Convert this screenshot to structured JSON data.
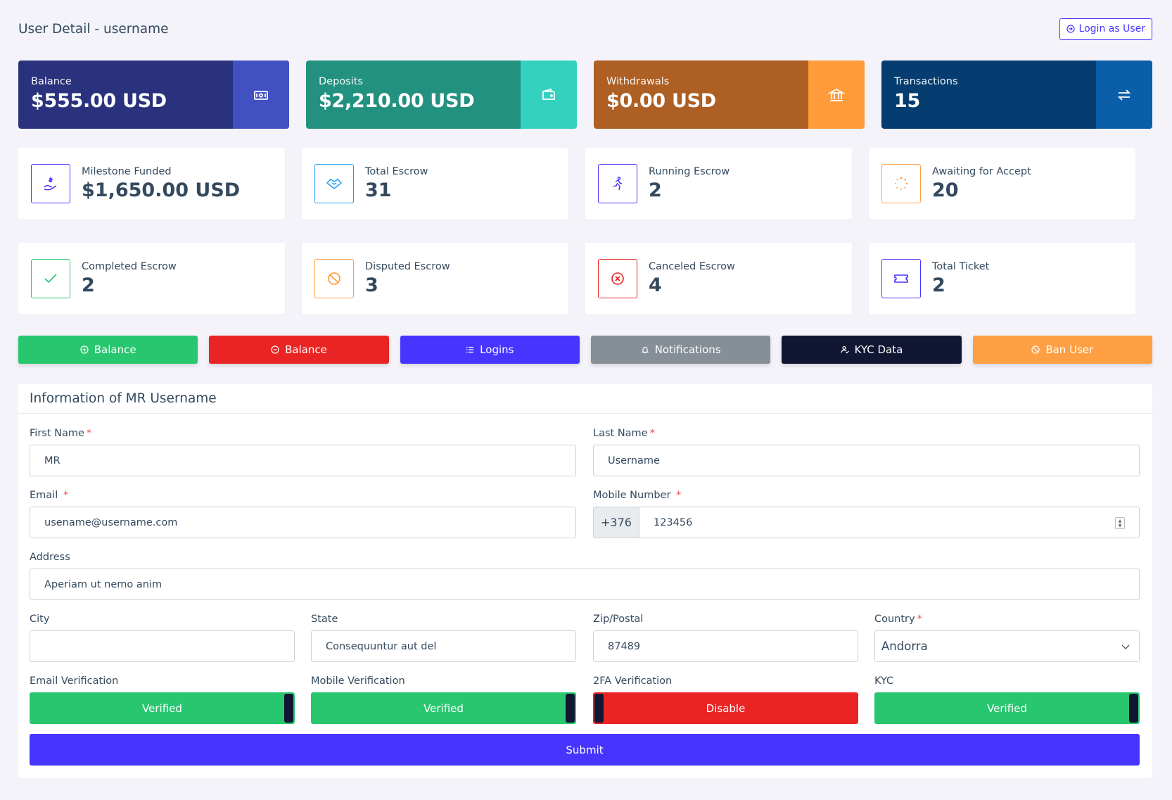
{
  "header": {
    "title": "User Detail - username",
    "login_as_user": "Login as User"
  },
  "widgets": [
    {
      "label": "Balance",
      "amount": "$555.00 USD",
      "color": "#2b327d",
      "icon_bg": "#4151c1",
      "icon": "money-bill-icon"
    },
    {
      "label": "Deposits",
      "amount": "$2,210.00 USD",
      "color": "#23917f",
      "icon_bg": "#34d1bf",
      "icon": "wallet-icon"
    },
    {
      "label": "Withdrawals",
      "amount": "$0.00 USD",
      "color": "#ad5f24",
      "icon_bg": "#ff9b3b",
      "icon": "bank-icon"
    },
    {
      "label": "Transactions",
      "amount": "15",
      "color": "#053d70",
      "icon_bg": "#0b5ea8",
      "icon": "exchange-icon"
    }
  ],
  "stats_row1": [
    {
      "title": "Milestone Funded",
      "value": "$1,650.00 USD",
      "color": "#4634ff",
      "icon": "hand-holding-dollar-icon"
    },
    {
      "title": "Total Escrow",
      "value": "31",
      "color": "#1e9ff2",
      "icon": "handshake-icon"
    },
    {
      "title": "Running Escrow",
      "value": "2",
      "color": "#4634ff",
      "icon": "running-person-icon"
    },
    {
      "title": "Awaiting for Accept",
      "value": "20",
      "color": "#ff9f43",
      "icon": "spinner-icon"
    }
  ],
  "stats_row2": [
    {
      "title": "Completed Escrow",
      "value": "2",
      "color": "#28c76f",
      "icon": "check-icon"
    },
    {
      "title": "Disputed Escrow",
      "value": "3",
      "color": "#ff9f43",
      "icon": "ban-icon"
    },
    {
      "title": "Canceled Escrow",
      "value": "4",
      "color": "#ea2424",
      "icon": "times-circle-icon"
    },
    {
      "title": "Total Ticket",
      "value": "2",
      "color": "#4634ff",
      "icon": "ticket-icon"
    }
  ],
  "actions": [
    {
      "label": "Balance",
      "color": "#28c76f",
      "icon": "plus-circle-icon"
    },
    {
      "label": "Balance",
      "color": "#ea2424",
      "icon": "minus-circle-icon"
    },
    {
      "label": "Logins",
      "color": "#4634ff",
      "icon": "list-icon"
    },
    {
      "label": "Notifications",
      "color": "#868e96",
      "icon": "bell-icon"
    },
    {
      "label": "KYC Data",
      "color": "#111633",
      "icon": "user-check-icon"
    },
    {
      "label": "Ban User",
      "color": "#ff9f43",
      "icon": "ban-icon"
    }
  ],
  "form": {
    "title": "Information of MR Username",
    "first_name": {
      "label": "First Name",
      "value": "MR"
    },
    "last_name": {
      "label": "Last Name",
      "value": "Username"
    },
    "email": {
      "label": "Email",
      "value": "usename@username.com"
    },
    "mobile": {
      "label": "Mobile Number",
      "prefix": "+376",
      "value": "123456"
    },
    "address": {
      "label": "Address",
      "value": "Aperiam ut nemo anim"
    },
    "city": {
      "label": "City",
      "value": ""
    },
    "state": {
      "label": "State",
      "value": "Consequuntur aut del"
    },
    "zip": {
      "label": "Zip/Postal",
      "value": "87489"
    },
    "country": {
      "label": "Country",
      "value": "Andorra"
    },
    "required_mark": "*",
    "verifications": [
      {
        "label": "Email Verification",
        "state": "Verified",
        "on": true
      },
      {
        "label": "Mobile Verification",
        "state": "Verified",
        "on": true
      },
      {
        "label": "2FA Verification",
        "state": "Disable",
        "on": false
      },
      {
        "label": "KYC",
        "state": "Verified",
        "on": true
      }
    ],
    "submit": "Submit"
  }
}
